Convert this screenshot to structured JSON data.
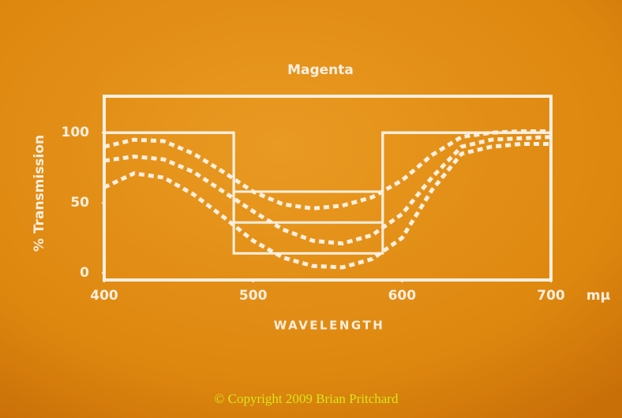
{
  "chart_data": {
    "type": "line",
    "title": "Magenta",
    "y_label": "% Transmission",
    "x_label": "WAVELENGTH",
    "x_unit": "mμ",
    "footer": "© Copyright 2009 Brian Pritchard",
    "xlim": [
      400,
      700
    ],
    "ylim": [
      -5,
      126
    ],
    "xticks": [
      400,
      500,
      600,
      700
    ],
    "yticks": [
      0,
      50,
      100
    ],
    "color": "#fbefe0",
    "series": [
      {
        "style": "solid",
        "x": [
          400,
          487,
          487,
          587,
          587,
          700
        ],
        "values": [
          100,
          100,
          58,
          58,
          100,
          100
        ]
      },
      {
        "style": "solid",
        "x": [
          400,
          487,
          487,
          587,
          587,
          700
        ],
        "values": [
          100,
          100,
          36,
          36,
          100,
          100
        ]
      },
      {
        "style": "solid",
        "x": [
          400,
          487,
          487,
          587,
          587,
          700
        ],
        "values": [
          100,
          100,
          14,
          14,
          100,
          100
        ]
      },
      {
        "style": "dashed",
        "x": [
          400,
          420,
          440,
          460,
          480,
          500,
          520,
          540,
          560,
          580,
          600,
          620,
          640,
          660,
          680,
          700
        ],
        "values": [
          90,
          95,
          94,
          85,
          72,
          58,
          49,
          46,
          48,
          54,
          66,
          84,
          97,
          100,
          101,
          101
        ]
      },
      {
        "style": "dashed",
        "x": [
          400,
          420,
          440,
          460,
          480,
          500,
          520,
          540,
          560,
          580,
          600,
          620,
          640,
          660,
          680,
          700
        ],
        "values": [
          80,
          83,
          81,
          72,
          58,
          44,
          31,
          23,
          21,
          27,
          42,
          68,
          90,
          95,
          96,
          97
        ]
      },
      {
        "style": "dashed",
        "x": [
          400,
          420,
          440,
          460,
          480,
          500,
          520,
          540,
          560,
          580,
          600,
          620,
          640,
          660,
          680,
          700
        ],
        "values": [
          61,
          71,
          68,
          56,
          40,
          23,
          11,
          5,
          4,
          10,
          25,
          59,
          85,
          90,
          92,
          92
        ]
      }
    ]
  }
}
